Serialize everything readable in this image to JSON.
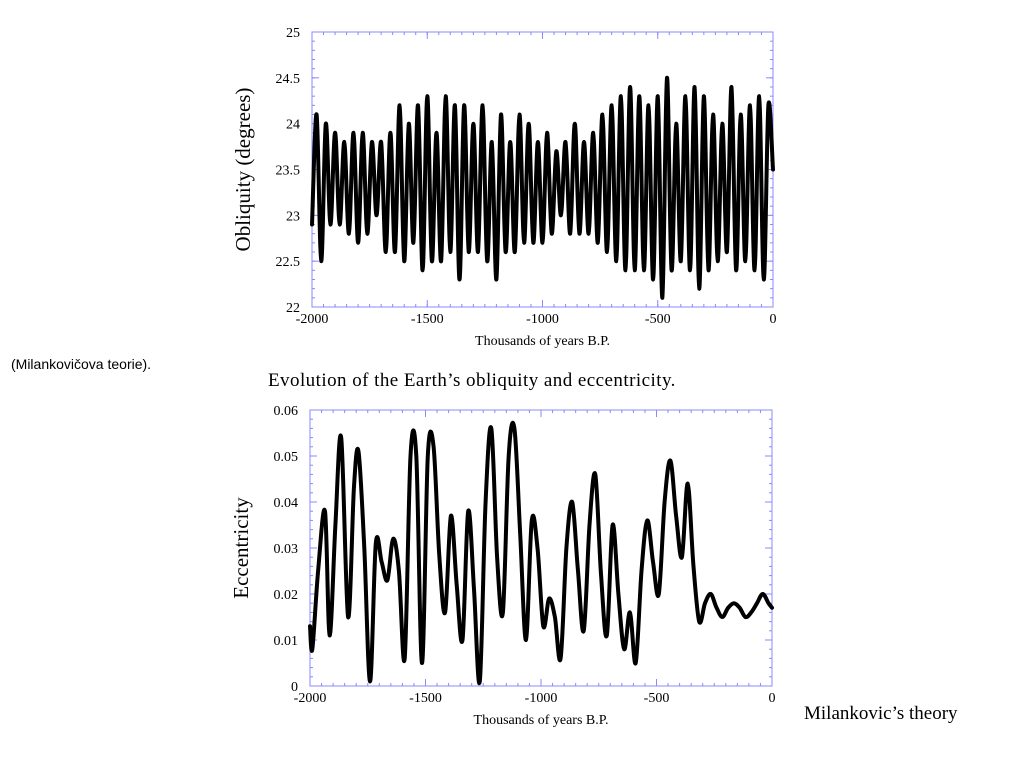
{
  "side_note": "(Milankovičova teorie).",
  "caption_main": "Evolution of the Earth’s obliquity and eccentricity.",
  "caption_side": "Milankovic’s theory",
  "chart_data": [
    {
      "type": "line",
      "ylabel": "Obliquity (degrees)",
      "xlabel": "Thousands of years B.P.",
      "xlim": [
        -2000,
        0
      ],
      "ylim": [
        22,
        25
      ],
      "x_ticks": [
        -2000,
        -1500,
        -1000,
        -500,
        0
      ],
      "y_ticks": [
        22,
        22.5,
        23,
        23.5,
        24,
        24.5,
        25
      ],
      "line_color": "#000000",
      "axis_color": "#8888ff",
      "series": [
        {
          "x": [
            -2000,
            -1980,
            -1960,
            -1940,
            -1920,
            -1900,
            -1880,
            -1860,
            -1840,
            -1820,
            -1800,
            -1780,
            -1760,
            -1740,
            -1720,
            -1700,
            -1680,
            -1660,
            -1640,
            -1620,
            -1600,
            -1580,
            -1560,
            -1540,
            -1520,
            -1500,
            -1480,
            -1460,
            -1440,
            -1420,
            -1400,
            -1380,
            -1360,
            -1340,
            -1320,
            -1300,
            -1280,
            -1260,
            -1240,
            -1220,
            -1200,
            -1180,
            -1160,
            -1140,
            -1120,
            -1100,
            -1080,
            -1060,
            -1040,
            -1020,
            -1000,
            -980,
            -960,
            -940,
            -920,
            -900,
            -880,
            -860,
            -840,
            -820,
            -800,
            -780,
            -760,
            -740,
            -720,
            -700,
            -680,
            -660,
            -640,
            -620,
            -600,
            -580,
            -560,
            -540,
            -520,
            -500,
            -480,
            -460,
            -440,
            -420,
            -400,
            -380,
            -360,
            -340,
            -320,
            -300,
            -280,
            -260,
            -240,
            -220,
            -200,
            -180,
            -160,
            -140,
            -120,
            -100,
            -80,
            -60,
            -40,
            -20,
            0
          ],
          "y": [
            22.9,
            24.1,
            22.5,
            24.0,
            22.9,
            23.9,
            22.9,
            23.8,
            22.8,
            23.9,
            22.7,
            23.9,
            22.8,
            23.8,
            23.0,
            23.8,
            22.6,
            23.9,
            22.6,
            24.2,
            22.5,
            24.0,
            22.7,
            24.2,
            22.4,
            24.3,
            22.5,
            23.9,
            22.5,
            24.3,
            22.6,
            24.2,
            22.3,
            24.2,
            22.6,
            24.0,
            22.6,
            24.2,
            22.5,
            23.8,
            22.3,
            24.1,
            22.6,
            23.8,
            22.6,
            24.1,
            22.7,
            24.0,
            22.7,
            23.8,
            22.7,
            23.9,
            22.8,
            23.7,
            23.0,
            23.8,
            22.8,
            24.0,
            22.8,
            23.8,
            22.8,
            23.9,
            22.7,
            24.1,
            22.6,
            24.2,
            22.5,
            24.3,
            22.4,
            24.4,
            22.4,
            24.3,
            22.4,
            24.2,
            22.3,
            24.3,
            22.1,
            24.5,
            22.4,
            24.0,
            22.5,
            24.3,
            22.4,
            24.4,
            22.2,
            24.3,
            22.4,
            24.1,
            22.5,
            24.0,
            22.6,
            24.4,
            22.4,
            24.1,
            22.5,
            24.2,
            22.4,
            24.3,
            22.3,
            24.2,
            23.5
          ]
        }
      ]
    },
    {
      "type": "line",
      "ylabel": "Eccentricity",
      "xlabel": "Thousands of years B.P.",
      "xlim": [
        -2000,
        0
      ],
      "ylim": [
        0,
        0.06
      ],
      "x_ticks": [
        -2000,
        -1500,
        -1000,
        -500,
        0
      ],
      "y_ticks": [
        0,
        0.01,
        0.02,
        0.03,
        0.04,
        0.05,
        0.06
      ],
      "line_color": "#000000",
      "axis_color": "#8888ff",
      "series": [
        {
          "x": [
            -2000,
            -1990,
            -1965,
            -1935,
            -1915,
            -1890,
            -1865,
            -1835,
            -1810,
            -1790,
            -1765,
            -1740,
            -1715,
            -1690,
            -1665,
            -1640,
            -1615,
            -1590,
            -1565,
            -1540,
            -1515,
            -1490,
            -1465,
            -1440,
            -1415,
            -1390,
            -1365,
            -1340,
            -1315,
            -1290,
            -1265,
            -1240,
            -1215,
            -1190,
            -1165,
            -1140,
            -1115,
            -1090,
            -1065,
            -1040,
            -1015,
            -990,
            -965,
            -940,
            -915,
            -890,
            -865,
            -840,
            -815,
            -790,
            -765,
            -740,
            -715,
            -690,
            -665,
            -640,
            -615,
            -590,
            -565,
            -540,
            -515,
            -490,
            -465,
            -440,
            -415,
            -390,
            -365,
            -340,
            -315,
            -290,
            -265,
            -240,
            -215,
            -190,
            -165,
            -140,
            -115,
            -90,
            -65,
            -40,
            -15,
            0
          ],
          "y": [
            0.013,
            0.008,
            0.025,
            0.038,
            0.011,
            0.035,
            0.054,
            0.015,
            0.043,
            0.051,
            0.03,
            0.001,
            0.031,
            0.027,
            0.023,
            0.032,
            0.025,
            0.006,
            0.05,
            0.05,
            0.005,
            0.05,
            0.052,
            0.028,
            0.016,
            0.037,
            0.022,
            0.01,
            0.038,
            0.021,
            0.001,
            0.04,
            0.056,
            0.028,
            0.016,
            0.05,
            0.056,
            0.033,
            0.01,
            0.036,
            0.03,
            0.013,
            0.019,
            0.015,
            0.006,
            0.03,
            0.04,
            0.025,
            0.012,
            0.035,
            0.046,
            0.024,
            0.011,
            0.035,
            0.02,
            0.008,
            0.016,
            0.005,
            0.025,
            0.036,
            0.027,
            0.02,
            0.04,
            0.049,
            0.037,
            0.028,
            0.044,
            0.026,
            0.014,
            0.018,
            0.02,
            0.017,
            0.015,
            0.017,
            0.018,
            0.017,
            0.015,
            0.016,
            0.018,
            0.02,
            0.018,
            0.017
          ]
        }
      ]
    }
  ]
}
